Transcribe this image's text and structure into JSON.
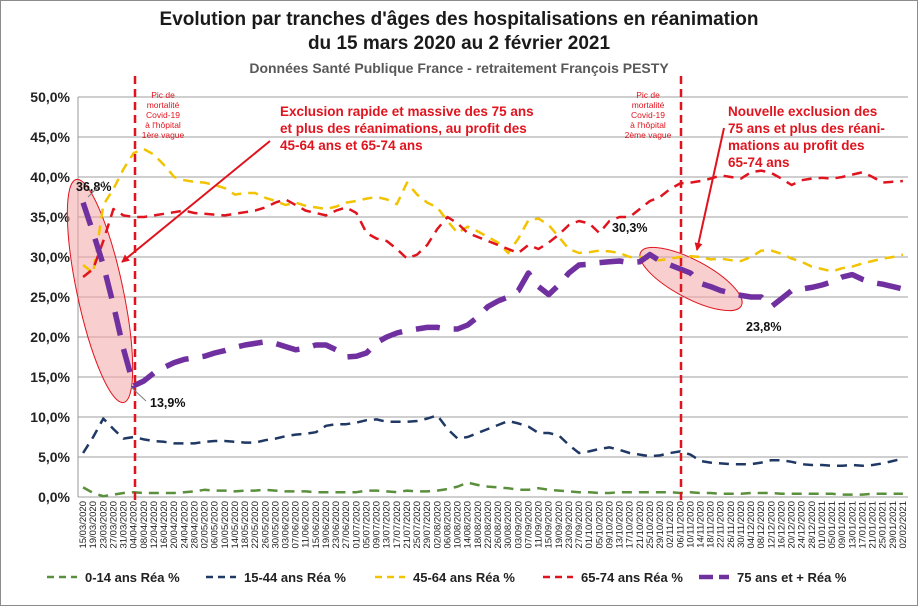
{
  "title_line1": "Evolution par tranches d'âges des hospitalisations en réanimation",
  "title_line2": "du 15 mars 2020 au 2 février 2021",
  "subtitle": "Données Santé Publique France - retraitement François PESTY",
  "chart_data": {
    "type": "line",
    "ylim": [
      0,
      50
    ],
    "yticks": [
      "0,0%",
      "5,0%",
      "10,0%",
      "15,0%",
      "20,0%",
      "25,0%",
      "30,0%",
      "35,0%",
      "40,0%",
      "45,0%",
      "50,0%"
    ],
    "grid": true,
    "legend_position": "bottom",
    "categories": [
      "15/03/2020",
      "19/03/2020",
      "23/03/2020",
      "27/03/2020",
      "31/03/2020",
      "04/04/2020",
      "08/04/2020",
      "12/04/2020",
      "16/04/2020",
      "20/04/2020",
      "24/04/2020",
      "28/04/2020",
      "02/05/2020",
      "06/05/2020",
      "10/05/2020",
      "14/05/2020",
      "18/05/2020",
      "22/05/2020",
      "26/05/2020",
      "30/05/2020",
      "03/06/2020",
      "07/06/2020",
      "11/06/2020",
      "15/06/2020",
      "19/06/2020",
      "23/06/2020",
      "27/06/2020",
      "01/07/2020",
      "05/07/2020",
      "09/07/2020",
      "13/07/2020",
      "17/07/2020",
      "21/07/2020",
      "25/07/2020",
      "29/07/2020",
      "02/08/2020",
      "06/08/2020",
      "10/08/2020",
      "14/08/2020",
      "18/08/2020",
      "22/08/2020",
      "26/08/2020",
      "30/08/2020",
      "03/09/2020",
      "07/09/2020",
      "11/09/2020",
      "15/09/2020",
      "19/09/2020",
      "23/09/2020",
      "27/09/2020",
      "01/10/2020",
      "05/10/2020",
      "09/10/2020",
      "13/10/2020",
      "17/10/2020",
      "21/10/2020",
      "25/10/2020",
      "29/10/2020",
      "02/11/2020",
      "06/11/2020",
      "10/11/2020",
      "14/11/2020",
      "18/11/2020",
      "22/11/2020",
      "26/11/2020",
      "30/11/2020",
      "04/12/2020",
      "08/12/2020",
      "12/12/2020",
      "16/12/2020",
      "20/12/2020",
      "24/12/2020",
      "28/12/2020",
      "01/01/2021",
      "05/01/2021",
      "09/01/2021",
      "13/01/2021",
      "17/01/2021",
      "21/01/2021",
      "25/01/2021",
      "29/01/2021",
      "02/02/2021"
    ],
    "series": [
      {
        "name": "0-14 ans Réa %",
        "color": "#5a8f3c",
        "style": "dash",
        "width": 2.5,
        "values": [
          1.2,
          0.5,
          0.1,
          0.3,
          0.5,
          0.6,
          0.5,
          0.5,
          0.5,
          0.5,
          0.6,
          0.7,
          0.9,
          0.8,
          0.8,
          0.7,
          0.8,
          0.8,
          0.9,
          0.8,
          0.7,
          0.7,
          0.7,
          0.6,
          0.6,
          0.6,
          0.6,
          0.6,
          0.8,
          0.8,
          0.7,
          0.6,
          0.8,
          0.7,
          0.7,
          0.8,
          1.0,
          1.3,
          1.8,
          1.5,
          1.3,
          1.2,
          1.1,
          0.9,
          0.9,
          1.1,
          0.9,
          0.8,
          0.7,
          0.6,
          0.6,
          0.5,
          0.5,
          0.6,
          0.6,
          0.6,
          0.6,
          0.6,
          0.6,
          0.5,
          0.6,
          0.5,
          0.5,
          0.4,
          0.4,
          0.4,
          0.5,
          0.5,
          0.5,
          0.4,
          0.4,
          0.4,
          0.4,
          0.4,
          0.4,
          0.3,
          0.3,
          0.3,
          0.4,
          0.4,
          0.4,
          0.4
        ]
      },
      {
        "name": "15-44 ans Réa %",
        "color": "#1f3864",
        "style": "dash",
        "width": 2.5,
        "values": [
          5.5,
          7.5,
          9.8,
          8.5,
          7.3,
          7.5,
          7.2,
          7.0,
          6.9,
          6.7,
          6.7,
          6.7,
          6.9,
          7.0,
          7.0,
          6.9,
          6.8,
          6.8,
          7.1,
          7.3,
          7.6,
          7.8,
          7.9,
          8.1,
          8.9,
          9.1,
          9.1,
          9.3,
          9.6,
          9.7,
          9.4,
          9.4,
          9.4,
          9.5,
          9.8,
          10.2,
          8.5,
          7.3,
          7.5,
          8.0,
          8.5,
          9.0,
          9.5,
          9.2,
          8.8,
          8.0,
          8.0,
          7.7,
          6.5,
          5.5,
          5.7,
          6.0,
          6.2,
          5.9,
          5.5,
          5.3,
          5.1,
          5.2,
          5.5,
          5.7,
          5.3,
          4.5,
          4.3,
          4.2,
          4.1,
          4.1,
          4.1,
          4.3,
          4.6,
          4.6,
          4.4,
          4.1,
          4.0,
          4.0,
          3.9,
          3.9,
          4.0,
          3.9,
          4.0,
          4.2,
          4.5,
          4.8
        ]
      },
      {
        "name": "45-64 ans Réa %",
        "color": "#f2c300",
        "style": "dash",
        "width": 2.5,
        "values": [
          29.0,
          28.0,
          36.5,
          38.5,
          41.0,
          43.0,
          43.5,
          42.8,
          41.5,
          40.0,
          39.6,
          39.4,
          39.3,
          39.0,
          38.6,
          37.8,
          38.0,
          38.0,
          37.4,
          37.0,
          36.5,
          36.8,
          36.4,
          36.2,
          36.0,
          36.3,
          36.8,
          37.0,
          37.3,
          37.5,
          37.2,
          36.6,
          39.3,
          37.8,
          36.8,
          36.2,
          34.5,
          33.0,
          33.8,
          33.2,
          32.5,
          31.8,
          30.5,
          32.3,
          34.6,
          34.8,
          34.0,
          32.5,
          31.0,
          30.5,
          30.6,
          30.8,
          30.7,
          30.5,
          30.0,
          30.0,
          29.7,
          29.6,
          29.8,
          30.0,
          30.1,
          30.0,
          29.7,
          29.8,
          29.6,
          29.5,
          30.0,
          30.8,
          30.8,
          30.4,
          29.8,
          29.4,
          28.8,
          28.5,
          28.2,
          28.6,
          28.8,
          29.2,
          29.5,
          29.8,
          30.0,
          30.3
        ]
      },
      {
        "name": "65-74 ans Réa %",
        "color": "#e0141e",
        "style": "dash",
        "width": 2.5,
        "values": [
          27.5,
          28.5,
          32.0,
          36.0,
          35.2,
          35.0,
          35.0,
          35.2,
          35.4,
          35.6,
          35.8,
          35.5,
          35.4,
          35.3,
          35.2,
          35.4,
          35.6,
          35.8,
          36.2,
          36.8,
          37.2,
          36.5,
          35.8,
          35.5,
          35.2,
          35.8,
          36.2,
          35.5,
          33.0,
          32.3,
          32.0,
          31.0,
          29.8,
          30.3,
          31.5,
          33.5,
          35.0,
          34.2,
          33.0,
          32.5,
          32.0,
          31.5,
          31.0,
          30.5,
          31.5,
          31.0,
          31.8,
          32.8,
          34.0,
          34.5,
          34.2,
          33.0,
          34.5,
          35.0,
          35.0,
          36.0,
          37.0,
          37.5,
          38.5,
          39.2,
          39.3,
          39.5,
          39.8,
          40.2,
          40.0,
          39.8,
          40.6,
          40.8,
          40.5,
          39.8,
          39.0,
          39.6,
          39.8,
          39.9,
          39.8,
          40.0,
          40.3,
          40.6,
          40.0,
          39.3,
          39.4,
          39.5
        ]
      },
      {
        "name": "75 ans et + Réa %",
        "color": "#7030a0",
        "style": "dash",
        "width": 5.5,
        "values": [
          36.8,
          33.0,
          29.0,
          24.0,
          18.5,
          13.9,
          14.5,
          15.5,
          16.2,
          16.8,
          17.2,
          17.4,
          17.6,
          18.0,
          18.3,
          18.7,
          19.0,
          19.2,
          19.4,
          19.2,
          18.8,
          18.4,
          18.6,
          19.0,
          19.0,
          18.4,
          17.5,
          17.6,
          18.0,
          19.3,
          20.0,
          20.5,
          20.8,
          21.0,
          21.2,
          21.2,
          21.0,
          21.0,
          21.5,
          22.5,
          23.8,
          24.5,
          25.0,
          25.8,
          28.0,
          26.3,
          25.3,
          26.5,
          28.0,
          29.0,
          29.1,
          29.3,
          29.4,
          29.5,
          29.3,
          29.4,
          30.3,
          29.5,
          29.0,
          28.5,
          28.0,
          26.7,
          26.3,
          25.8,
          25.5,
          25.2,
          25.0,
          25.0,
          23.8,
          24.8,
          25.8,
          26.0,
          26.2,
          26.5,
          26.9,
          27.5,
          27.8,
          27.2,
          26.8,
          26.6,
          26.3,
          26.0
        ]
      }
    ],
    "labels": [
      {
        "text": "36,8%",
        "index": 0
      },
      {
        "text": "13,9%",
        "index": 5
      },
      {
        "text": "30,3%",
        "index": 56
      },
      {
        "text": "23,8%",
        "index": 68
      }
    ]
  },
  "annotations": {
    "peak1": [
      "Pic de",
      "mortalité",
      "Covid-19",
      "à l'hôpital",
      "1ère vague"
    ],
    "peak2": [
      "Pic de",
      "mortalité",
      "Covid-19",
      "à l'hôpital",
      "2ème vague"
    ],
    "note1": [
      "Exclusion rapide et massive des 75 ans",
      "et plus des réanimations, au profit des",
      "45-64 ans et 65-74 ans"
    ],
    "note2": [
      "Nouvelle exclusion des",
      "75 ans et plus des réani-",
      "mations au profit des",
      "65-74 ans"
    ]
  }
}
